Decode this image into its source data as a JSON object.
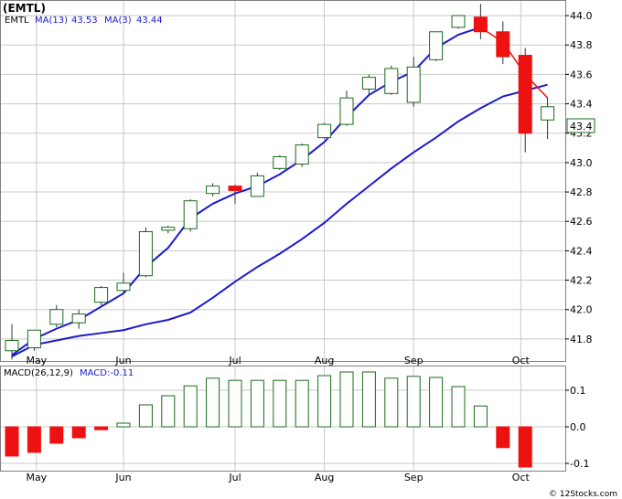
{
  "title": "(EMTL)",
  "credit": "© 12Stocks.com",
  "colors": {
    "up_stroke": "#1a6b1a",
    "down_fill": "#ee1111",
    "ma_line": "#1a1ad0",
    "grid": "#c8c8c8",
    "frame": "#808080"
  },
  "legend": {
    "symbol": "EMTL",
    "ma13_label": "MA(13)",
    "ma13_value": "43.53",
    "ma3_label": "MA(3)",
    "ma3_value": "43.44"
  },
  "last_price_label": "43.4",
  "macd_legend": {
    "label": "MACD(26,12,9)",
    "value_label": "MACD:-0.11"
  },
  "chart_data": [
    {
      "type": "candlestick",
      "name": "price",
      "ylim": [
        41.65,
        44.1
      ],
      "y_ticks": [
        "44.0",
        "43.8",
        "43.6",
        "43.4",
        "43.2",
        "43.0",
        "42.8",
        "42.6",
        "42.4",
        "42.2",
        "42.0",
        "41.8"
      ],
      "y_tick_values": [
        44.0,
        43.8,
        43.6,
        43.4,
        43.2,
        43.0,
        42.8,
        42.6,
        42.4,
        42.2,
        42.0,
        41.8
      ],
      "x_labels": [
        "May",
        "Jun",
        "Jul",
        "Aug",
        "Sep",
        "Oct"
      ],
      "x_label_index": [
        1.1,
        5.0,
        10.0,
        14.0,
        18.0,
        22.8
      ],
      "candles": [
        {
          "o": 41.72,
          "h": 41.9,
          "l": 41.66,
          "c": 41.79
        },
        {
          "o": 41.74,
          "h": 41.86,
          "l": 41.72,
          "c": 41.86
        },
        {
          "o": 41.9,
          "h": 42.03,
          "l": 41.88,
          "c": 42.0
        },
        {
          "o": 41.91,
          "h": 42.0,
          "l": 41.87,
          "c": 41.97
        },
        {
          "o": 42.05,
          "h": 42.16,
          "l": 42.03,
          "c": 42.15
        },
        {
          "o": 42.13,
          "h": 42.25,
          "l": 42.11,
          "c": 42.18
        },
        {
          "o": 42.23,
          "h": 42.56,
          "l": 42.22,
          "c": 42.53
        },
        {
          "o": 42.54,
          "h": 42.57,
          "l": 42.52,
          "c": 42.56
        },
        {
          "o": 42.55,
          "h": 42.75,
          "l": 42.53,
          "c": 42.74
        },
        {
          "o": 42.79,
          "h": 42.86,
          "l": 42.77,
          "c": 42.84
        },
        {
          "o": 42.84,
          "h": 42.85,
          "l": 42.72,
          "c": 42.81
        },
        {
          "o": 42.77,
          "h": 42.93,
          "l": 42.77,
          "c": 42.91
        },
        {
          "o": 42.96,
          "h": 43.05,
          "l": 42.95,
          "c": 43.04
        },
        {
          "o": 42.99,
          "h": 43.13,
          "l": 42.97,
          "c": 43.12
        },
        {
          "o": 43.17,
          "h": 43.27,
          "l": 43.16,
          "c": 43.26
        },
        {
          "o": 43.26,
          "h": 43.49,
          "l": 43.25,
          "c": 43.44
        },
        {
          "o": 43.5,
          "h": 43.6,
          "l": 43.46,
          "c": 43.58
        },
        {
          "o": 43.47,
          "h": 43.66,
          "l": 43.46,
          "c": 43.64
        },
        {
          "o": 43.41,
          "h": 43.72,
          "l": 43.38,
          "c": 43.65
        },
        {
          "o": 43.7,
          "h": 43.89,
          "l": 43.69,
          "c": 43.89
        },
        {
          "o": 43.92,
          "h": 44.0,
          "l": 43.91,
          "c": 44.0
        },
        {
          "o": 43.99,
          "h": 44.08,
          "l": 43.84,
          "c": 43.89
        },
        {
          "o": 43.89,
          "h": 43.96,
          "l": 43.67,
          "c": 43.72
        },
        {
          "o": 43.73,
          "h": 43.78,
          "l": 43.07,
          "c": 43.2
        },
        {
          "o": 43.29,
          "h": 43.44,
          "l": 43.16,
          "c": 43.38
        }
      ],
      "ma_slow": [
        41.68,
        41.76,
        41.79,
        41.82,
        41.84,
        41.86,
        41.9,
        41.93,
        41.98,
        42.08,
        42.19,
        42.29,
        42.38,
        42.48,
        42.59,
        42.72,
        42.84,
        42.96,
        43.07,
        43.17,
        43.28,
        43.37,
        43.45,
        43.49,
        43.53
      ],
      "ma_fast": [
        41.69,
        41.8,
        41.87,
        41.93,
        42.02,
        42.11,
        42.29,
        42.42,
        42.62,
        42.72,
        42.79,
        42.84,
        42.92,
        43.02,
        43.14,
        43.31,
        43.46,
        43.55,
        43.62,
        43.78,
        43.87,
        43.92,
        null,
        null,
        null
      ],
      "ma_fast_red": [
        {
          "i": 21,
          "v": 43.92
        },
        {
          "i": 22,
          "v": 43.82
        },
        {
          "i": 23,
          "v": 43.6
        },
        {
          "i": 24,
          "v": 43.44
        }
      ]
    },
    {
      "type": "bar",
      "name": "macd",
      "ylim": [
        -0.12,
        0.165
      ],
      "y_ticks": [
        "0.1",
        "0.0",
        "-0.1"
      ],
      "y_tick_values": [
        0.1,
        0.0,
        -0.1
      ],
      "values": [
        -0.08,
        -0.07,
        -0.045,
        -0.03,
        -0.008,
        0.01,
        0.06,
        0.085,
        0.112,
        0.133,
        0.127,
        0.127,
        0.127,
        0.127,
        0.14,
        0.15,
        0.15,
        0.133,
        0.138,
        0.135,
        0.11,
        0.057,
        -0.057,
        -0.11
      ]
    }
  ]
}
